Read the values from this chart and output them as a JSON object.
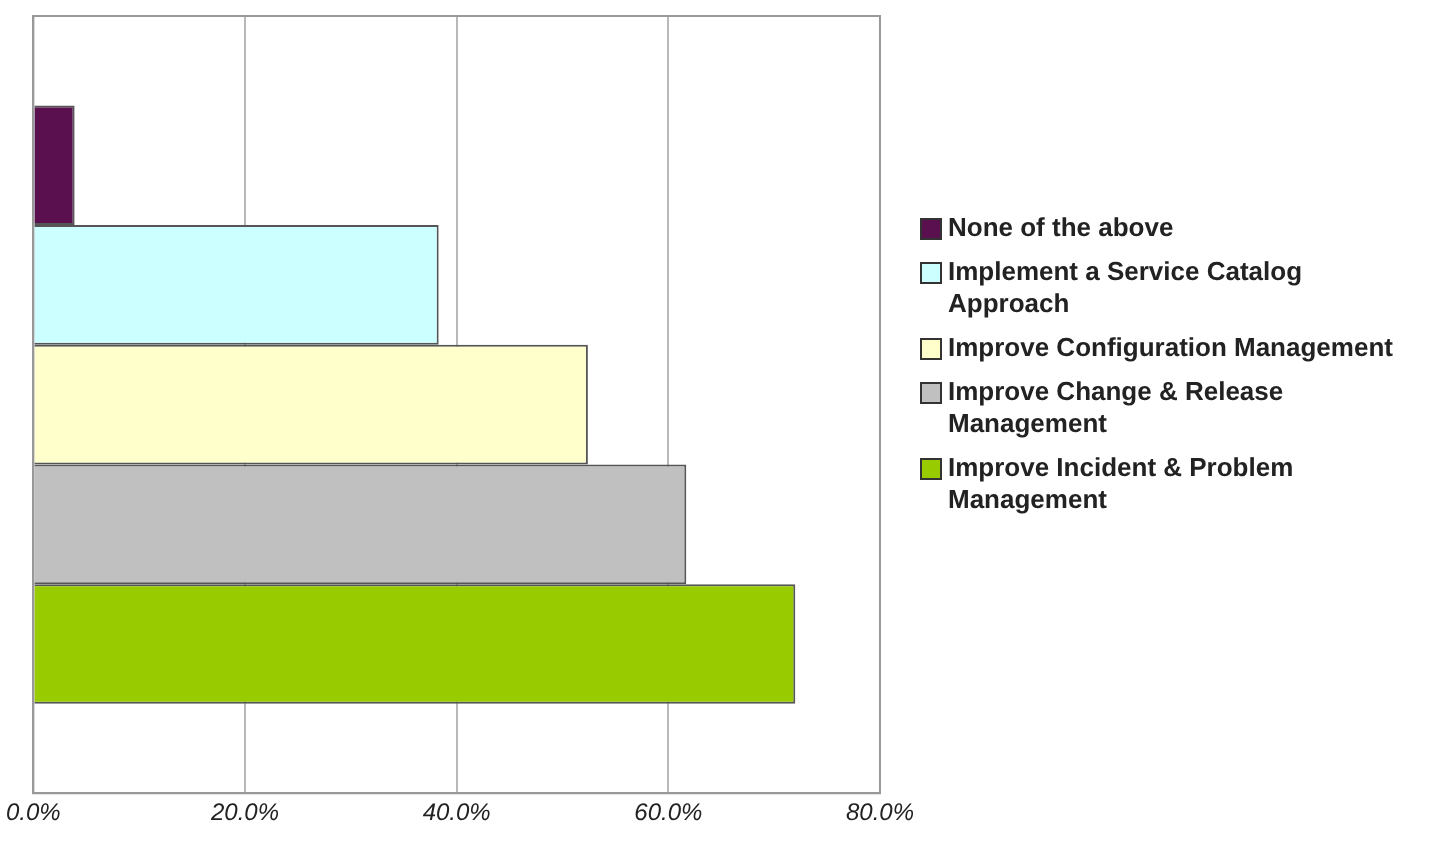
{
  "chart_data": {
    "type": "bar",
    "orientation": "horizontal",
    "categories": [
      null
    ],
    "series": [
      {
        "name": "None of the above",
        "color": "#5a0f4e",
        "values": [
          3.9
        ]
      },
      {
        "name": "Implement a Service Catalog Approach",
        "color": "#ccffff",
        "values": [
          38.3
        ]
      },
      {
        "name": "Improve Configuration Management",
        "color": "#ffffcc",
        "values": [
          52.4
        ]
      },
      {
        "name": "Improve Change & Release Management",
        "color": "#c0c0c0",
        "values": [
          61.7
        ]
      },
      {
        "name": "Improve Incident & Problem Management",
        "color": "#99cc00",
        "values": [
          72.0
        ]
      }
    ],
    "xlim": [
      0,
      80
    ],
    "xticks": [
      {
        "value": 0,
        "label": "0.0%"
      },
      {
        "value": 20,
        "label": "20.0%"
      },
      {
        "value": 40,
        "label": "40.0%"
      },
      {
        "value": 60,
        "label": "60.0%"
      },
      {
        "value": 80,
        "label": "80.0%"
      }
    ],
    "grid": "x",
    "legend": "right",
    "tick_labels": "x"
  }
}
